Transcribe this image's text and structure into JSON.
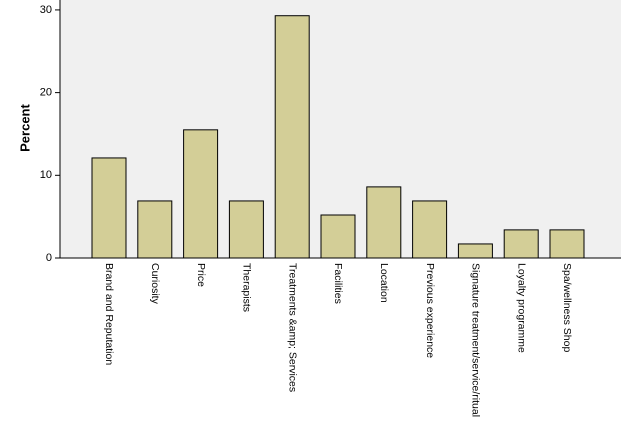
{
  "chart_data": {
    "type": "bar",
    "ylabel": "Percent",
    "categories": [
      "Brand and Reputation",
      "Curiosity",
      "Price",
      "Therapists",
      "Treatments &amp; Services",
      "Facilities",
      "Location",
      "Previous experience",
      "Signature treatment/service/ritual",
      "Loyalty programme",
      "Spa/wellness Shop"
    ],
    "values": [
      12.1,
      6.9,
      15.5,
      6.9,
      29.3,
      5.2,
      8.6,
      6.9,
      1.7,
      3.4,
      3.4
    ],
    "color": "#d3ce97",
    "ylim": [
      0,
      31.2
    ],
    "yticks": [
      0,
      10,
      20,
      30
    ],
    "grid": false
  }
}
